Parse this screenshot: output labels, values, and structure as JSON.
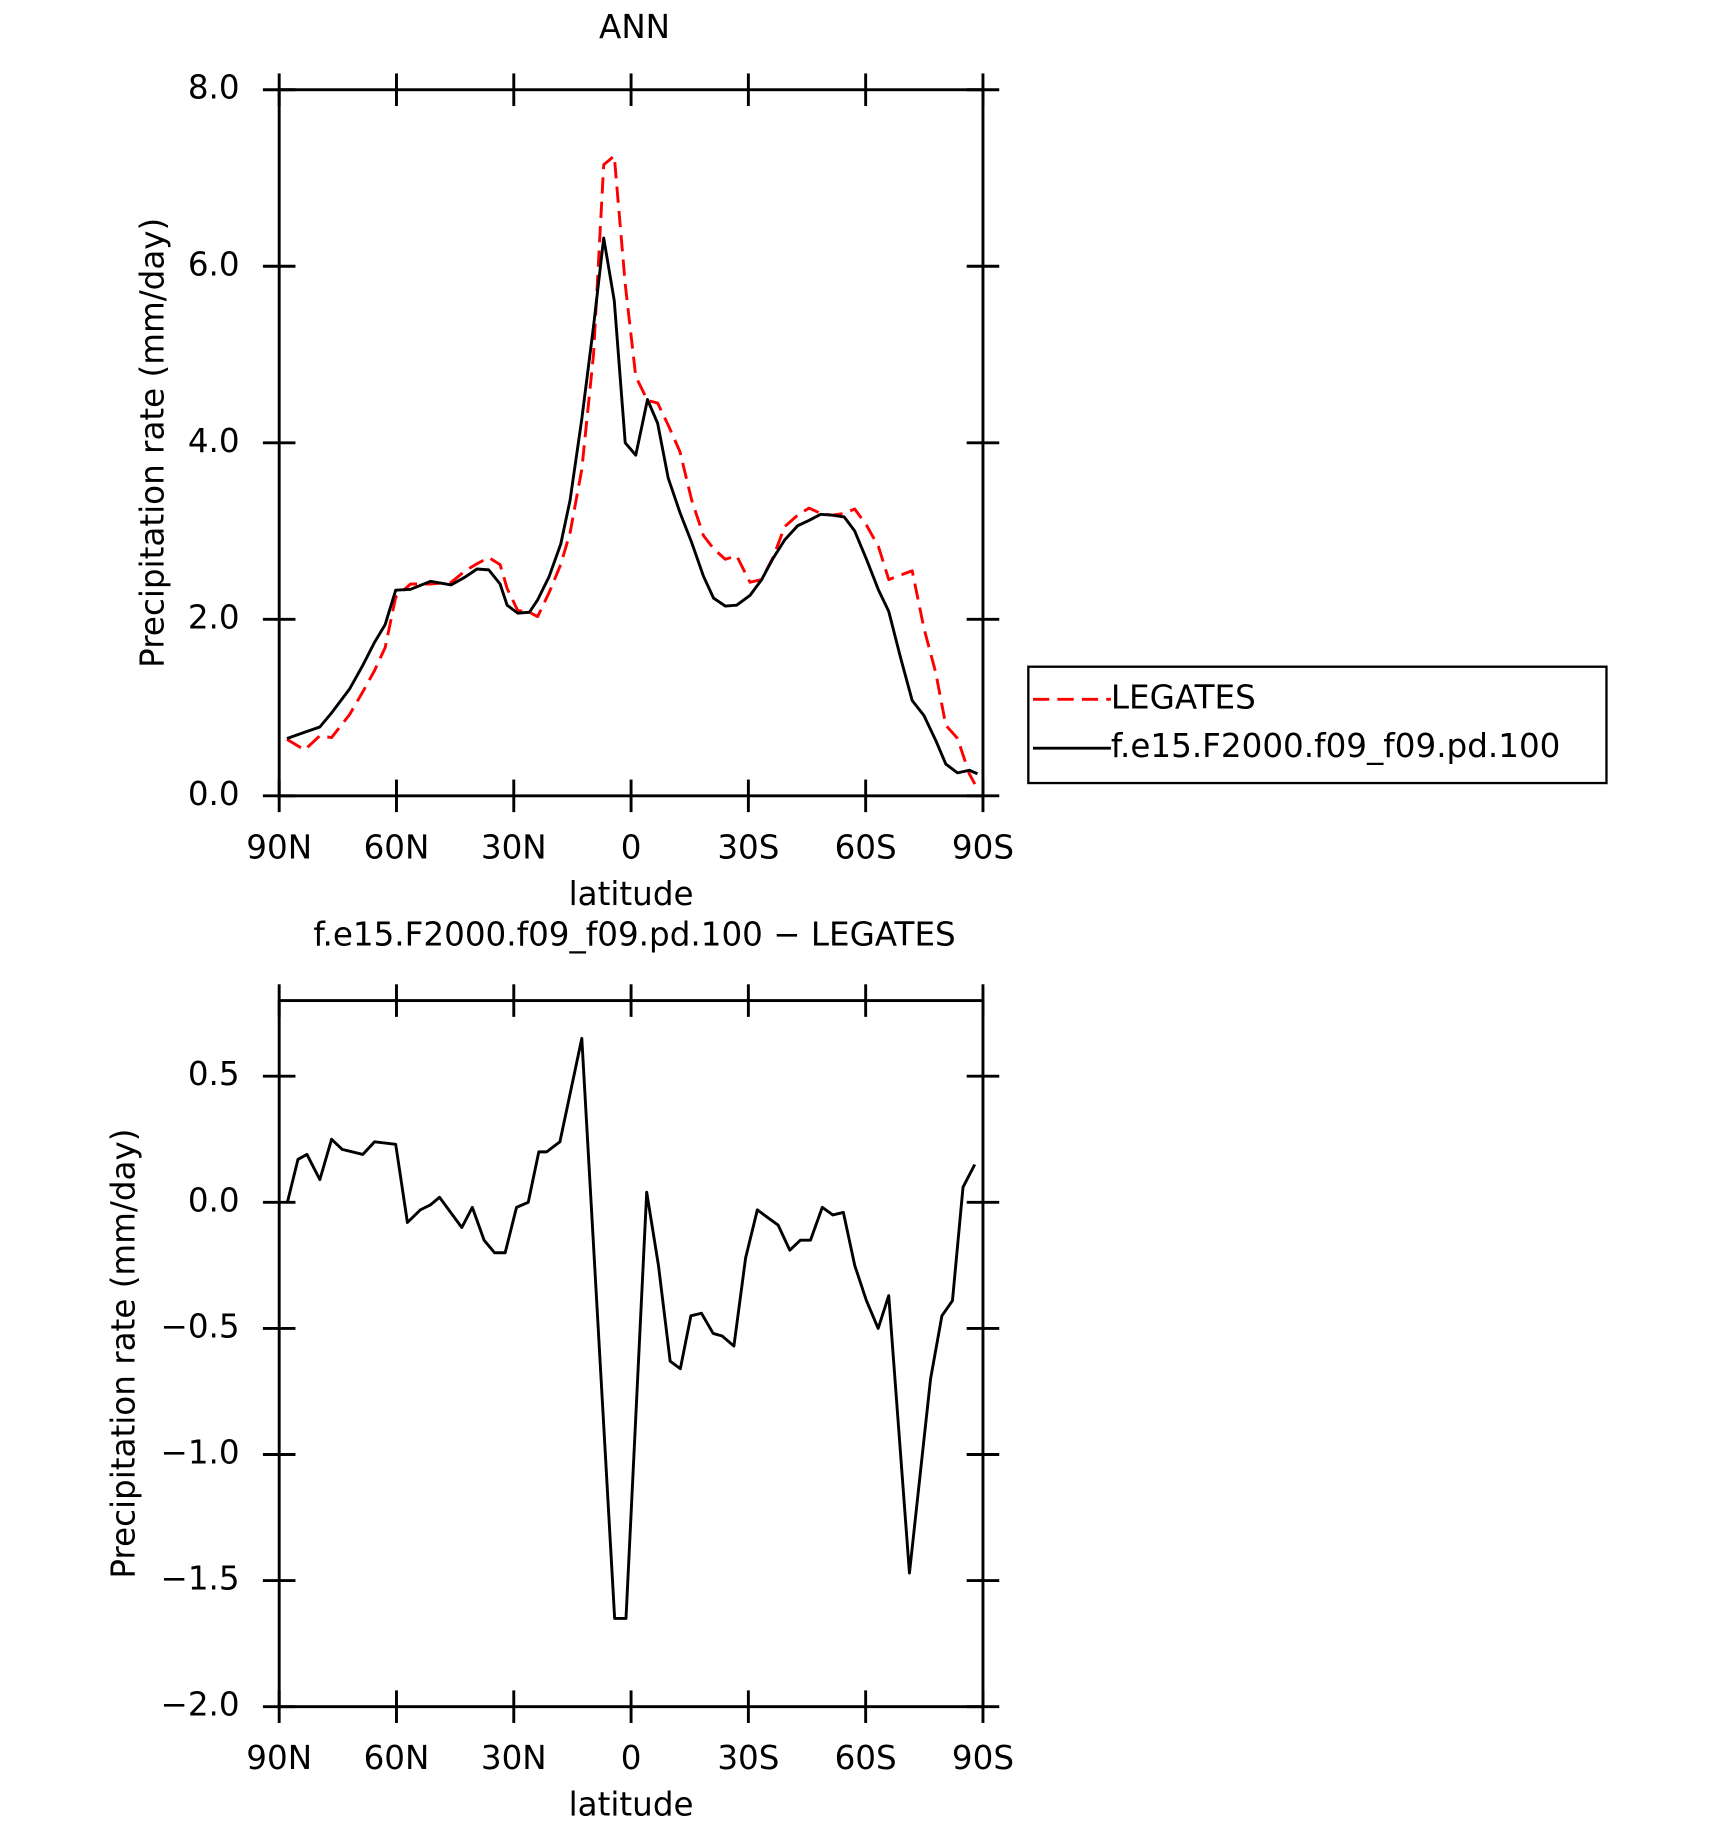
{
  "chart_data": [
    {
      "type": "line",
      "title": "ANN",
      "x_label": "latitude",
      "y_label": "Precipitation rate (mm/day)",
      "xlim": [
        90,
        -90
      ],
      "xticks": [
        {
          "value": 90,
          "label": "90N"
        },
        {
          "value": 60,
          "label": "60N"
        },
        {
          "value": 30,
          "label": "30N"
        },
        0,
        {
          "value": -30,
          "label": "30S"
        },
        {
          "value": -60,
          "label": "60S"
        },
        {
          "value": -90,
          "label": "90S"
        }
      ],
      "ylim": [
        0,
        8
      ],
      "yticks": [
        {
          "value": 0,
          "label": "0.0"
        },
        {
          "value": 2,
          "label": "2.0"
        },
        {
          "value": 4,
          "label": "4.0"
        },
        {
          "value": 6,
          "label": "6.0"
        },
        {
          "value": 8,
          "label": "8.0"
        }
      ],
      "legend": "right",
      "x": [
        88,
        83.5,
        79.6,
        76.6,
        72,
        68.6,
        65.6,
        62.9,
        60.2,
        56.4,
        51.3,
        46,
        42.4,
        39.4,
        36.4,
        33.5,
        31.7,
        29,
        26,
        23.9,
        21,
        18,
        15.6,
        12.6,
        9.6,
        7,
        4.3,
        1.5,
        -1.2,
        -4.2,
        -6.8,
        -9.5,
        -12.5,
        -15.5,
        -18.5,
        -21.1,
        -24.1,
        -27,
        -30.4,
        -33.4,
        -36.3,
        -39.3,
        -42.6,
        -45.5,
        -48.5,
        -51.5,
        -54.5,
        -57.2,
        -60.3,
        -63.3,
        -65.9,
        -68.9,
        -71.9,
        -74.9,
        -77.9,
        -80.5,
        -83.5,
        -86.5,
        -88.6
      ],
      "series": [
        {
          "name": "LEGATES",
          "color": "#ff0000",
          "dashed": true,
          "values": [
            0.64,
            0.52,
            0.68,
            0.66,
            0.92,
            1.18,
            1.42,
            1.68,
            2.25,
            2.4,
            2.4,
            2.42,
            2.55,
            2.63,
            2.7,
            2.62,
            2.35,
            2.1,
            2.08,
            2.03,
            2.3,
            2.62,
            2.98,
            3.7,
            5.0,
            7.15,
            7.25,
            5.8,
            4.75,
            4.48,
            4.45,
            4.2,
            3.9,
            3.35,
            2.95,
            2.8,
            2.68,
            2.72,
            2.42,
            2.45,
            2.7,
            3.05,
            3.18,
            3.26,
            3.2,
            3.18,
            3.2,
            3.25,
            3.06,
            2.82,
            2.45,
            2.5,
            2.55,
            1.9,
            1.4,
            0.8,
            0.65,
            0.25,
            0.08
          ]
        },
        {
          "name": "f.e15.F2000.f09_f09.pd.100",
          "color": "#000000",
          "dashed": false,
          "values": [
            0.65,
            0.72,
            0.78,
            0.94,
            1.21,
            1.48,
            1.74,
            1.94,
            2.33,
            2.34,
            2.43,
            2.39,
            2.48,
            2.57,
            2.56,
            2.4,
            2.16,
            2.07,
            2.08,
            2.22,
            2.48,
            2.85,
            3.35,
            4.27,
            5.32,
            6.32,
            5.61,
            4.0,
            3.86,
            4.49,
            4.22,
            3.6,
            3.21,
            2.87,
            2.49,
            2.24,
            2.15,
            2.16,
            2.27,
            2.45,
            2.69,
            2.9,
            3.06,
            3.12,
            3.19,
            3.18,
            3.16,
            3.0,
            2.67,
            2.33,
            2.09,
            1.57,
            1.08,
            0.91,
            0.63,
            0.36,
            0.26,
            0.29,
            0.25
          ]
        }
      ]
    },
    {
      "type": "line",
      "title": "f.e15.F2000.f09_f09.pd.100 − LEGATES",
      "x_label": "latitude",
      "y_label": "Precipitation rate (mm/day)",
      "xlim": [
        90,
        -90
      ],
      "xticks": [
        {
          "value": 90,
          "label": "90N"
        },
        {
          "value": 60,
          "label": "60N"
        },
        {
          "value": 30,
          "label": "30N"
        },
        0,
        {
          "value": -30,
          "label": "30S"
        },
        {
          "value": -60,
          "label": "60S"
        },
        {
          "value": -90,
          "label": "90S"
        }
      ],
      "ylim": [
        -2.0,
        0.8
      ],
      "yticks": [
        {
          "value": -2.0,
          "label": "−2.0"
        },
        {
          "value": -1.5,
          "label": "−1.5"
        },
        {
          "value": -1.0,
          "label": "−1.0"
        },
        {
          "value": -0.5,
          "label": "−0.5"
        },
        {
          "value": 0,
          "label": "0.0"
        },
        0.5
      ],
      "x": [
        87.9,
        85.2,
        82.9,
        79.6,
        76.6,
        73.9,
        68.6,
        65.6,
        60.2,
        57.2,
        53.9,
        51.3,
        49.0,
        43.3,
        40.6,
        37.6,
        34.9,
        32.2,
        29.3,
        26.3,
        23.6,
        21.6,
        18.2,
        12.6,
        4.2,
        1.3,
        -4.0,
        -7.0,
        -10.0,
        -12.6,
        -15.3,
        -18.0,
        -21.0,
        -23.3,
        -26.3,
        -29.3,
        -32.3,
        -34.9,
        -37.6,
        -40.6,
        -43.3,
        -45.9,
        -48.9,
        -51.6,
        -54.3,
        -57.2,
        -60.2,
        -63.2,
        -65.9,
        -71.2,
        -76.6,
        -79.5,
        -82.2,
        -84.9,
        -87.9
      ],
      "series": [
        {
          "color": "#000000",
          "dashed": false,
          "values": [
            0,
            0.17,
            0.19,
            0.09,
            0.25,
            0.21,
            0.19,
            0.24,
            0.23,
            -0.08,
            -0.03,
            -0.01,
            0.02,
            -0.1,
            -0.02,
            -0.15,
            -0.2,
            -0.2,
            -0.02,
            0.0,
            0.2,
            0.2,
            0.24,
            0.65,
            -1.65,
            -1.65,
            0.04,
            -0.25,
            -0.63,
            -0.66,
            -0.45,
            -0.44,
            -0.52,
            -0.53,
            -0.57,
            -0.22,
            -0.03,
            -0.06,
            -0.09,
            -0.19,
            -0.15,
            -0.15,
            -0.02,
            -0.05,
            -0.04,
            -0.25,
            -0.39,
            -0.5,
            -0.37,
            -1.47,
            -0.7,
            -0.45,
            -0.39,
            0.06,
            0.15
          ]
        }
      ]
    }
  ]
}
